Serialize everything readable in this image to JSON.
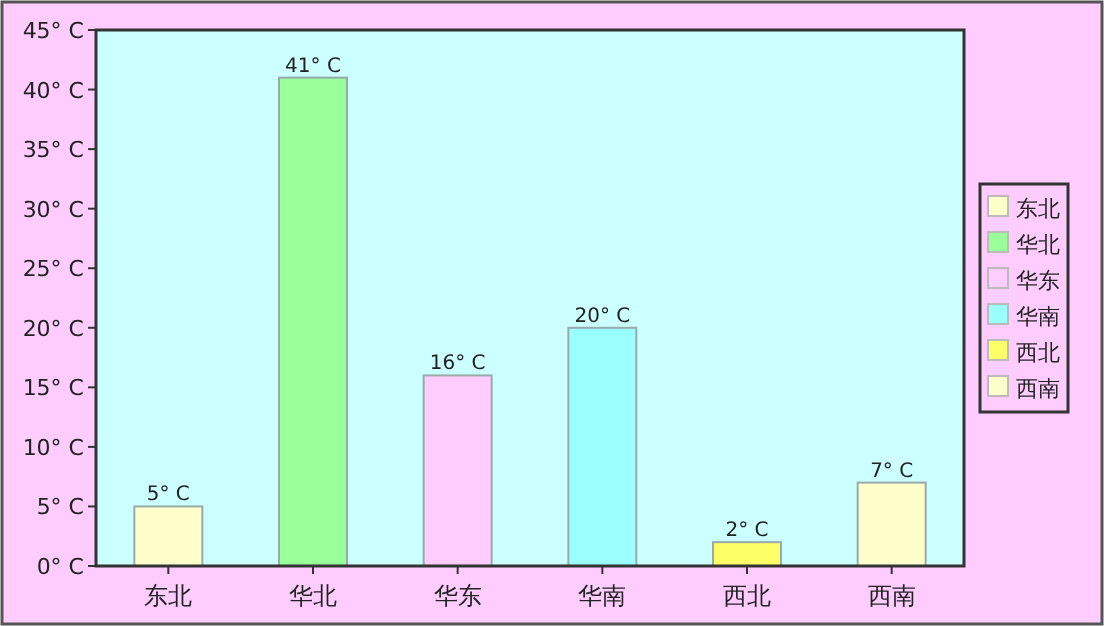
{
  "chart_data": {
    "type": "bar",
    "categories": [
      "东北",
      "华北",
      "华东",
      "华南",
      "西北",
      "西南"
    ],
    "stacked": true,
    "series": [
      {
        "name": "东北",
        "color": "#ffffcc",
        "values": [
          5,
          null,
          null,
          null,
          null,
          null
        ],
        "value_labels": [
          "5° C",
          null,
          null,
          null,
          null,
          null
        ]
      },
      {
        "name": "华北",
        "color": "#99ff99",
        "values": [
          null,
          41,
          null,
          null,
          null,
          null
        ],
        "value_labels": [
          null,
          "41° C",
          null,
          null,
          null,
          null
        ]
      },
      {
        "name": "华东",
        "color": "#ffccff",
        "values": [
          null,
          null,
          16,
          null,
          null,
          null
        ],
        "value_labels": [
          null,
          null,
          "16° C",
          null,
          null,
          null
        ]
      },
      {
        "name": "华南",
        "color": "#99ffff",
        "values": [
          null,
          null,
          null,
          20,
          null,
          null
        ],
        "value_labels": [
          null,
          null,
          null,
          "20° C",
          null,
          null
        ]
      },
      {
        "name": "西北",
        "color": "#ffff66",
        "values": [
          null,
          null,
          null,
          null,
          2,
          null
        ],
        "value_labels": [
          null,
          null,
          null,
          null,
          "2° C",
          null
        ]
      },
      {
        "name": "西南",
        "color": "#ffffcc",
        "values": [
          null,
          null,
          null,
          null,
          null,
          7
        ],
        "value_labels": [
          null,
          null,
          null,
          null,
          null,
          "7° C"
        ]
      }
    ],
    "ylim": [
      0,
      45
    ],
    "yticks": [
      {
        "value": 0,
        "label": "0° C"
      },
      {
        "value": 5,
        "label": "5° C"
      },
      {
        "value": 10,
        "label": "10° C"
      },
      {
        "value": 15,
        "label": "15° C"
      },
      {
        "value": 20,
        "label": "20° C"
      },
      {
        "value": 25,
        "label": "25° C"
      },
      {
        "value": 30,
        "label": "30° C"
      },
      {
        "value": 35,
        "label": "35° C"
      },
      {
        "value": 40,
        "label": "40° C"
      },
      {
        "value": 45,
        "label": "45° C"
      }
    ],
    "legend": "right"
  }
}
